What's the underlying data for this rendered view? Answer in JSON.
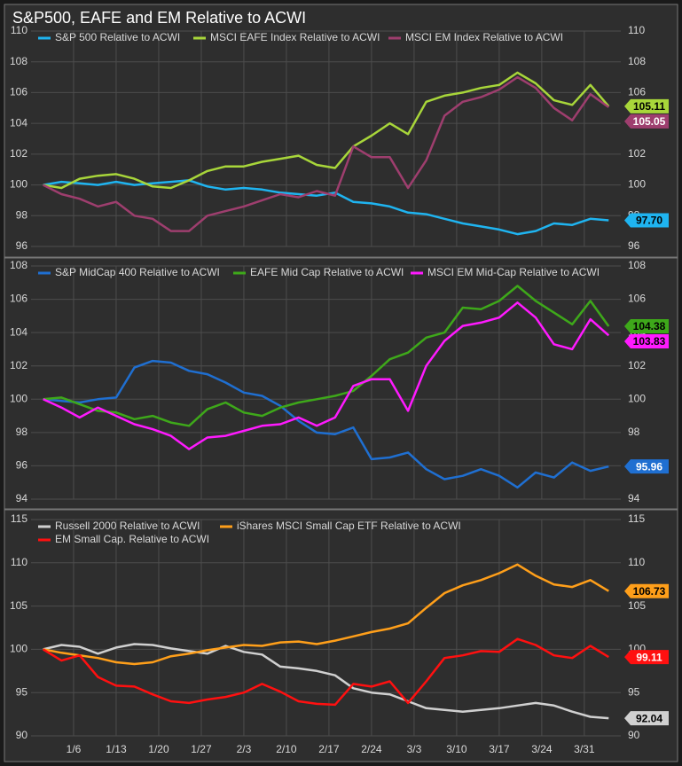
{
  "chart_data": [
    {
      "type": "line",
      "title": "S&P500, EAFE and EM Relative to ACWI",
      "legend": "upper left",
      "grid": true,
      "x": [
        1,
        4,
        7,
        10,
        13,
        16,
        19,
        22,
        25,
        28,
        31,
        34,
        37,
        40,
        43,
        46,
        49,
        52,
        55,
        58,
        61,
        64,
        67,
        70,
        73,
        76,
        79,
        82,
        85,
        88,
        91,
        94
      ],
      "xlim": [
        -1,
        96
      ],
      "xticks": [
        6,
        13,
        20,
        27,
        34,
        41,
        48,
        55,
        62,
        69,
        76,
        83,
        90
      ],
      "ylim": [
        96,
        110
      ],
      "yticks": [
        96,
        98,
        100,
        102,
        104,
        106,
        108,
        110
      ],
      "series": [
        {
          "name": "S&P 500 Relative to ACWI",
          "color": "#1fb4f0",
          "last_value_label": "97.70",
          "values": [
            100,
            100.2,
            100.1,
            100,
            100.2,
            100,
            100.1,
            100.2,
            100.3,
            99.9,
            99.7,
            99.8,
            99.7,
            99.5,
            99.4,
            99.3,
            99.5,
            98.9,
            98.8,
            98.6,
            98.2,
            98.1,
            97.8,
            97.5,
            97.3,
            97.1,
            96.8,
            97.0,
            97.5,
            97.4,
            97.8,
            97.7
          ]
        },
        {
          "name": "MSCI EAFE Index Relative to ACWI",
          "color": "#a8d63a",
          "last_value_label": "105.11",
          "values": [
            100,
            99.8,
            100.4,
            100.6,
            100.7,
            100.4,
            99.9,
            99.8,
            100.3,
            100.9,
            101.2,
            101.2,
            101.5,
            101.7,
            101.9,
            101.3,
            101.1,
            102.5,
            103.2,
            104,
            103.3,
            105.4,
            105.8,
            106,
            106.3,
            106.5,
            107.3,
            106.6,
            105.5,
            105.2,
            106.5,
            105.11
          ]
        },
        {
          "name": "MSCI EM Index Relative to ACWI",
          "color": "#9e3e6e",
          "last_value_label": "105.05",
          "values": [
            100,
            99.4,
            99.1,
            98.6,
            98.9,
            98,
            97.8,
            97,
            97,
            98,
            98.3,
            98.6,
            99,
            99.4,
            99.2,
            99.6,
            99.3,
            102.5,
            101.8,
            101.8,
            99.8,
            101.6,
            104.5,
            105.4,
            105.7,
            106.2,
            107,
            106.3,
            105,
            104.2,
            105.9,
            105.05
          ]
        }
      ]
    },
    {
      "type": "line",
      "legend": "upper left",
      "grid": true,
      "x": [
        1,
        4,
        7,
        10,
        13,
        16,
        19,
        22,
        25,
        28,
        31,
        34,
        37,
        40,
        43,
        46,
        49,
        52,
        55,
        58,
        61,
        64,
        67,
        70,
        73,
        76,
        79,
        82,
        85,
        88,
        91,
        94
      ],
      "xlim": [
        -1,
        96
      ],
      "xticks": [
        6,
        13,
        20,
        27,
        34,
        41,
        48,
        55,
        62,
        69,
        76,
        83,
        90
      ],
      "ylim": [
        94,
        108
      ],
      "yticks": [
        94,
        96,
        98,
        100,
        102,
        104,
        106,
        108
      ],
      "series": [
        {
          "name": "S&P MidCap 400 Relative to ACWI",
          "color": "#1f6fd1",
          "last_value_label": "95.96",
          "values": [
            100,
            99.9,
            99.8,
            100,
            100.1,
            101.9,
            102.3,
            102.2,
            101.7,
            101.5,
            101,
            100.4,
            100.2,
            99.6,
            98.7,
            98,
            97.9,
            98.3,
            96.4,
            96.5,
            96.8,
            95.8,
            95.2,
            95.4,
            95.8,
            95.4,
            94.7,
            95.6,
            95.3,
            96.2,
            95.7,
            95.96
          ]
        },
        {
          "name": "EAFE Mid Cap Relative to ACWI",
          "color": "#3ea81a",
          "last_value_label": "104.38",
          "values": [
            100,
            100.1,
            99.7,
            99.3,
            99.2,
            98.8,
            99,
            98.6,
            98.4,
            99.4,
            99.8,
            99.2,
            99,
            99.5,
            99.8,
            100,
            100.2,
            100.5,
            101.4,
            102.4,
            102.8,
            103.7,
            104,
            105.5,
            105.4,
            105.9,
            106.8,
            105.9,
            105.2,
            104.5,
            105.9,
            104.38
          ]
        },
        {
          "name": "MSCI EM Mid-Cap Relative to ACWI",
          "color": "#ff1aff",
          "last_value_label": "103.83",
          "values": [
            100,
            99.5,
            98.9,
            99.5,
            99,
            98.5,
            98.2,
            97.8,
            97,
            97.7,
            97.8,
            98.1,
            98.4,
            98.5,
            98.9,
            98.4,
            98.9,
            100.8,
            101.2,
            101.2,
            99.3,
            102,
            103.5,
            104.4,
            104.6,
            104.9,
            105.8,
            104.9,
            103.3,
            103,
            104.8,
            103.83
          ]
        }
      ]
    },
    {
      "type": "line",
      "legend": "upper left",
      "grid": true,
      "x": [
        1,
        4,
        7,
        10,
        13,
        16,
        19,
        22,
        25,
        28,
        31,
        34,
        37,
        40,
        43,
        46,
        49,
        52,
        55,
        58,
        61,
        64,
        67,
        70,
        73,
        76,
        79,
        82,
        85,
        88,
        91,
        94
      ],
      "xlim": [
        -1,
        96
      ],
      "xticks": [
        {
          "value": 6,
          "label": "1/6"
        },
        {
          "value": 13,
          "label": "1/13"
        },
        {
          "value": 20,
          "label": "1/20"
        },
        {
          "value": 27,
          "label": "1/27"
        },
        {
          "value": 34,
          "label": "2/3"
        },
        {
          "value": 41,
          "label": "2/10"
        },
        {
          "value": 48,
          "label": "2/17"
        },
        {
          "value": 55,
          "label": "2/24"
        },
        {
          "value": 62,
          "label": "3/3"
        },
        {
          "value": 69,
          "label": "3/10"
        },
        {
          "value": 76,
          "label": "3/17"
        },
        {
          "value": 83,
          "label": "3/24"
        },
        {
          "value": 90,
          "label": "3/31"
        }
      ],
      "ylim": [
        90,
        115
      ],
      "yticks": [
        90,
        95,
        100,
        105,
        110,
        115
      ],
      "series": [
        {
          "name": "Russell 2000 Relative to ACWI",
          "color": "#d0d0d0",
          "last_value_label": "92.04",
          "values": [
            100,
            100.5,
            100.3,
            99.5,
            100.2,
            100.6,
            100.5,
            100.1,
            99.8,
            99.5,
            100.4,
            99.7,
            99.4,
            98,
            97.8,
            97.5,
            97,
            95.5,
            95,
            94.8,
            94,
            93.2,
            93,
            92.8,
            93,
            93.2,
            93.5,
            93.8,
            93.5,
            92.8,
            92.2,
            92.04
          ]
        },
        {
          "name": "iShares MSCI Small Cap ETF Relative to ACWI",
          "color": "#ff9f1a",
          "last_value_label": "106.73",
          "values": [
            100,
            99.6,
            99.3,
            99,
            98.5,
            98.3,
            98.5,
            99.2,
            99.5,
            99.9,
            100.2,
            100.5,
            100.4,
            100.8,
            100.9,
            100.6,
            101,
            101.5,
            102,
            102.4,
            103,
            104.8,
            106.5,
            107.4,
            108,
            108.8,
            109.8,
            108.5,
            107.5,
            107.2,
            108,
            106.73
          ]
        },
        {
          "name": "EM Small Cap. Relative to ACWI",
          "color": "#ff1010",
          "last_value_label": "99.11",
          "values": [
            100,
            98.7,
            99.3,
            96.8,
            95.8,
            95.7,
            94.8,
            94,
            93.8,
            94.2,
            94.5,
            95,
            96,
            95.1,
            94,
            93.7,
            93.6,
            96,
            95.7,
            96.3,
            93.8,
            96.3,
            99,
            99.3,
            99.8,
            99.7,
            101.2,
            100.5,
            99.3,
            99,
            100.4,
            99.11
          ]
        }
      ]
    }
  ]
}
